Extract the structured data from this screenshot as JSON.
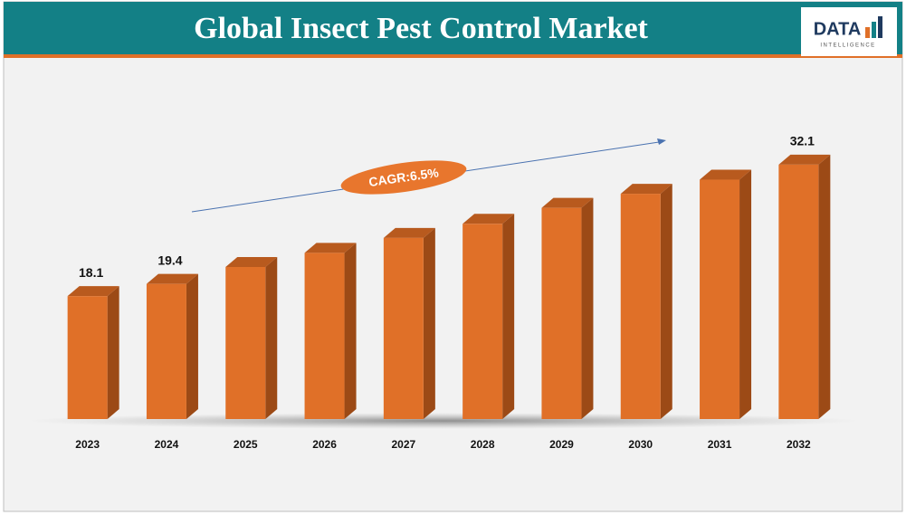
{
  "chart_data": {
    "type": "bar3d",
    "title": "Global Insect Pest Control Market",
    "categories": [
      "2023",
      "2024",
      "2025",
      "2026",
      "2027",
      "2028",
      "2029",
      "2030",
      "2031",
      "2032"
    ],
    "values": [
      18.1,
      19.4,
      21.2,
      22.7,
      24.3,
      25.8,
      27.5,
      29.0,
      30.5,
      32.1
    ],
    "value_labels": [
      "18.1",
      "19.4",
      null,
      null,
      null,
      null,
      null,
      null,
      null,
      "32.1"
    ],
    "color": "#e07028",
    "ylim": [
      5,
      40
    ],
    "annotation": "CAGR:6.5%"
  },
  "logo": {
    "text": "DATA",
    "subtext": "INTELLIGENCE"
  }
}
